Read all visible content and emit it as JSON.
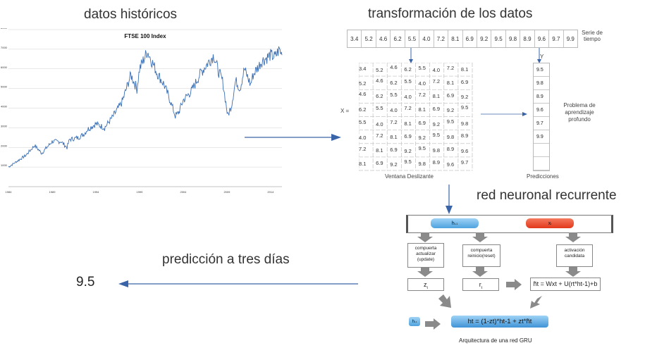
{
  "titles": {
    "historic": "datos históricos",
    "transform": "transformación de los datos",
    "rnn": "red neuronal recurrente",
    "prediction": "predicción a tres días"
  },
  "chart_data": {
    "type": "line",
    "title": "FTSE 100 Index",
    "x_ticks": [
      "1984",
      "1989",
      "1994",
      "1999",
      "2004",
      "2009",
      "2014"
    ],
    "y_ticks": [
      "1000",
      "2000",
      "3000",
      "4000",
      "5000",
      "6000",
      "7000",
      "8000"
    ],
    "ylim": [
      0,
      8000
    ],
    "grid": true,
    "series": [
      {
        "x": [
          1984,
          1985,
          1986,
          1987,
          1987.8,
          1988,
          1989,
          1990,
          1990.7,
          1991,
          1992,
          1992.7,
          1993,
          1994,
          1995,
          1996,
          1997,
          1998,
          1998.7,
          1999,
          1999.9,
          2000.5,
          2001,
          2001.8,
          2002.5,
          2003.1,
          2003.5,
          2004,
          2005,
          2006,
          2007,
          2007.5,
          2008,
          2008.5,
          2009.1,
          2009.5,
          2010,
          2010.5,
          2011,
          2011.7,
          2012,
          2013,
          2014,
          2014.5,
          2015,
          2015.3
        ],
        "y": [
          1000,
          1300,
          1600,
          2100,
          1700,
          1800,
          2300,
          2300,
          2000,
          2400,
          2500,
          2700,
          2900,
          3200,
          3000,
          3600,
          4300,
          5700,
          5000,
          6000,
          6900,
          6300,
          5800,
          5200,
          4400,
          3600,
          3800,
          4400,
          4900,
          5800,
          6400,
          6700,
          5900,
          5400,
          3600,
          4100,
          5400,
          5000,
          6000,
          5200,
          5700,
          6400,
          6700,
          6600,
          7000,
          6700
        ]
      }
    ]
  },
  "sequence": {
    "values": [
      "3.4",
      "5.2",
      "4.6",
      "6.2",
      "5.5",
      "4.0",
      "7.2",
      "8.1",
      "6.9",
      "9.2",
      "9.5",
      "9.8",
      "8.9",
      "9.6",
      "9.7",
      "9.9"
    ],
    "label": "Serie de tiempo"
  },
  "window": {
    "rows": [
      [
        "3.4",
        "5.2",
        "4.6",
        "6.2",
        "5.5",
        "4.0",
        "7.2",
        "8.1"
      ],
      [
        "5.2",
        "4.6",
        "6.2",
        "5.5",
        "4.0",
        "7.2",
        "8.1",
        "6.9"
      ],
      [
        "4.6",
        "6.2",
        "5.5",
        "4.0",
        "7.2",
        "8.1",
        "6.9",
        "9.2"
      ],
      [
        "6.2",
        "5.5",
        "4.0",
        "7.2",
        "8.1",
        "6.9",
        "9.2",
        "9.5"
      ],
      [
        "5.5",
        "4.0",
        "7.2",
        "8.1",
        "6.9",
        "9.2",
        "9.5",
        "9.8"
      ],
      [
        "4.0",
        "7.2",
        "8.1",
        "6.9",
        "9.2",
        "9.5",
        "9.8",
        "8.9"
      ],
      [
        "7.2",
        "8.1",
        "6.9",
        "9.2",
        "9.5",
        "9.8",
        "8.9",
        "9.6"
      ],
      [
        "8.1",
        "6.9",
        "9.2",
        "9.5",
        "9.8",
        "8.9",
        "9.6",
        "9.7"
      ]
    ],
    "x_label": "X =",
    "caption": "Ventana Deslizante"
  },
  "predictions": {
    "y_label": "Y",
    "values": [
      "9.5",
      "9.8",
      "8.9",
      "9.6",
      "9.7",
      "9.9",
      "",
      ""
    ],
    "caption": "Predicciones"
  },
  "problem_label": "Problema de aprendizaje profundo",
  "gru": {
    "h_prev": "h",
    "h_prev_sub": "t-1",
    "x_t": "x",
    "x_t_sub": "t",
    "update_gate": "compuerta actualizar (update)",
    "reset_gate": "compuerta reinicio(reset)",
    "candidate": "activación candidata",
    "z_label": "z",
    "z_sub": "t",
    "r_label": "r",
    "r_sub": "t",
    "candidate_formula": "h̃t = Wxt + U(rt*ht-1)+b",
    "h_small": "h",
    "h_small_sub": "t-1",
    "output_formula": "ht = (1-zt)*ht-1 + zt*h̃t",
    "caption": "Arquitectura de una red GRU",
    "colors": {
      "blue": "#5aaee6",
      "red": "#e84a2e",
      "arrow": "#8a8a8a",
      "flow": "#3a64a8"
    }
  },
  "prediction_value": "9.5"
}
